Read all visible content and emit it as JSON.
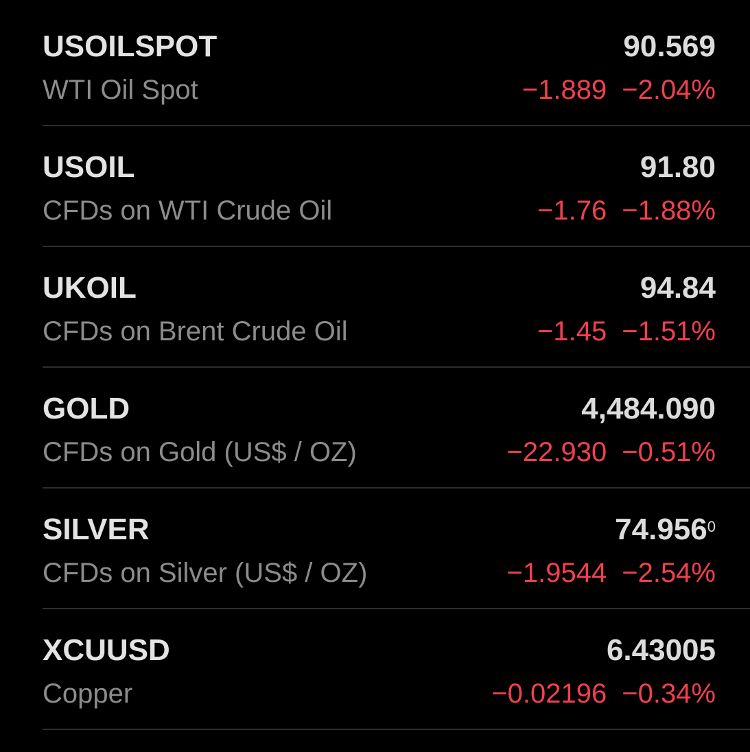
{
  "watchlist": {
    "rows": [
      {
        "symbol": "USOILSPOT",
        "description": "WTI Oil Spot",
        "price": "90.569",
        "change": "−1.889",
        "change_percent": "−2.04%"
      },
      {
        "symbol": "USOIL",
        "description": "CFDs on WTI Crude Oil",
        "price": "91.80",
        "change": "−1.76",
        "change_percent": "−1.88%"
      },
      {
        "symbol": "UKOIL",
        "description": "CFDs on Brent Crude Oil",
        "price": "94.84",
        "change": "−1.45",
        "change_percent": "−1.51%"
      },
      {
        "symbol": "GOLD",
        "description": "CFDs on Gold (US$ / OZ)",
        "price": "4,484.090",
        "change": "−22.930",
        "change_percent": "−0.51%"
      },
      {
        "symbol": "SILVER",
        "description": "CFDs on Silver (US$ / OZ)",
        "price": "74.956",
        "price_superscript": "0",
        "change": "−1.9544",
        "change_percent": "−2.54%"
      },
      {
        "symbol": "XCUUSD",
        "description": "Copper",
        "price": "6.43005",
        "change": "−0.02196",
        "change_percent": "−0.34%"
      }
    ]
  }
}
